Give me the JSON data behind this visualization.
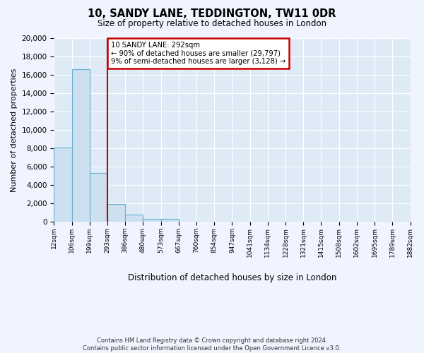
{
  "title": "10, SANDY LANE, TEDDINGTON, TW11 0DR",
  "subtitle": "Size of property relative to detached houses in London",
  "xlabel": "Distribution of detached houses by size in London",
  "ylabel": "Number of detached properties",
  "bar_values": [
    8100,
    16600,
    5300,
    1900,
    800,
    300,
    300,
    0,
    0,
    0,
    0,
    0,
    0,
    0,
    0,
    0,
    0,
    0,
    0,
    0
  ],
  "bar_labels": [
    "12sqm",
    "106sqm",
    "199sqm",
    "293sqm",
    "386sqm",
    "480sqm",
    "573sqm",
    "667sqm",
    "760sqm",
    "854sqm",
    "947sqm",
    "1041sqm",
    "1134sqm",
    "1228sqm",
    "1321sqm",
    "1415sqm",
    "1508sqm",
    "1602sqm",
    "1695sqm",
    "1789sqm",
    "1882sqm"
  ],
  "bar_color": "#cce0f0",
  "bar_edge_color": "#6aaed6",
  "property_line_x": 2.5,
  "annotation_title": "10 SANDY LANE: 292sqm",
  "annotation_line1": "← 90% of detached houses are smaller (29,797)",
  "annotation_line2": "9% of semi-detached houses are larger (3,128) →",
  "annotation_box_color": "#ffffff",
  "annotation_box_edge_color": "#cc0000",
  "property_line_color": "#cc0000",
  "ylim": [
    0,
    20000
  ],
  "yticks": [
    0,
    2000,
    4000,
    6000,
    8000,
    10000,
    12000,
    14000,
    16000,
    18000,
    20000
  ],
  "footer_line1": "Contains HM Land Registry data © Crown copyright and database right 2024.",
  "footer_line2": "Contains public sector information licensed under the Open Government Licence v3.0.",
  "plot_bg_color": "#deeaf5",
  "grid_color": "#ffffff",
  "n_bars": 20
}
